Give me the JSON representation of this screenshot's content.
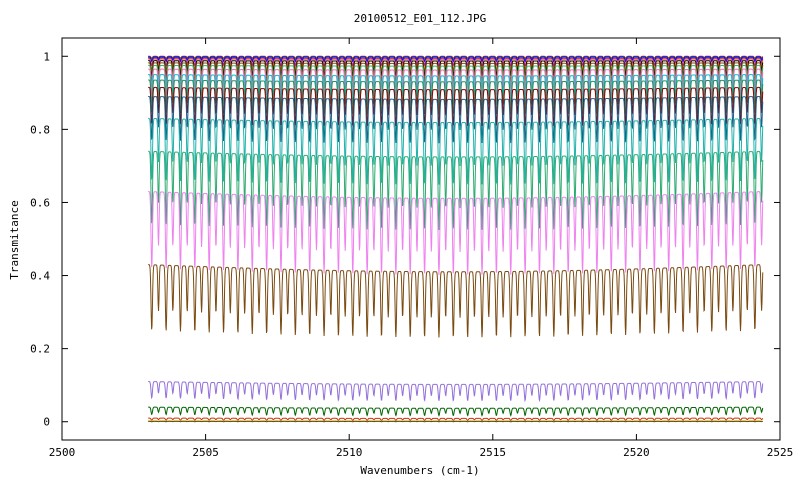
{
  "chart_data": {
    "type": "line",
    "title": "20100512_E01_112.JPG",
    "xlabel": "Wavenumbers (cm-1)",
    "ylabel": "Transmitance",
    "xlim": [
      2500,
      2525
    ],
    "ylim": [
      -0.05,
      1.05
    ],
    "xticks": [
      2500,
      2505,
      2510,
      2515,
      2520,
      2525
    ],
    "yticks": [
      0,
      0.2,
      0.4,
      0.6,
      0.8,
      1
    ],
    "ytick_labels": [
      "0",
      "0.2",
      "0.4",
      "0.6",
      "0.8",
      "1"
    ],
    "grid": false,
    "legend": "none",
    "data_x_range": [
      2503,
      2524.4
    ],
    "line_period_cm": 0.5,
    "series": [
      {
        "color": "#ff0000",
        "baseline": 1.0,
        "dip_depth": 0.005
      },
      {
        "color": "#00aa00",
        "baseline": 0.999,
        "dip_depth": 0.008
      },
      {
        "color": "#0000ff",
        "baseline": 0.998,
        "dip_depth": 0.012
      },
      {
        "color": "#8000ff",
        "baseline": 0.995,
        "dip_depth": 0.02
      },
      {
        "color": "#ff8000",
        "baseline": 0.992,
        "dip_depth": 0.03
      },
      {
        "color": "#000000",
        "baseline": 0.988,
        "dip_depth": 0.04
      },
      {
        "color": "#8b4513",
        "baseline": 0.982,
        "dip_depth": 0.05
      },
      {
        "color": "#3cb371",
        "baseline": 0.975,
        "dip_depth": 0.06
      },
      {
        "color": "#ff69b4",
        "baseline": 0.965,
        "dip_depth": 0.07
      },
      {
        "color": "#00bcd4",
        "baseline": 0.95,
        "dip_depth": 0.08
      },
      {
        "color": "#2e8b57",
        "baseline": 0.935,
        "dip_depth": 0.09
      },
      {
        "color": "#8b0000",
        "baseline": 0.915,
        "dip_depth": 0.1
      },
      {
        "color": "#1f5f8b",
        "baseline": 0.89,
        "dip_depth": 0.12
      },
      {
        "color": "#20b2aa",
        "baseline": 0.83,
        "dip_depth": 0.17
      },
      {
        "color": "#2eaa70",
        "baseline": 0.74,
        "dip_depth": 0.2
      },
      {
        "color": "#ee82ee",
        "baseline": 0.63,
        "dip_depth": 0.21
      },
      {
        "color": "#7a4a10",
        "baseline": 0.43,
        "dip_depth": 0.18
      },
      {
        "color": "#9370db",
        "baseline": 0.11,
        "dip_depth": 0.045
      },
      {
        "color": "#006400",
        "baseline": 0.04,
        "dip_depth": 0.02
      },
      {
        "color": "#cc3300",
        "baseline": 0.01,
        "dip_depth": 0.006
      },
      {
        "color": "#ffd700",
        "baseline": 0.003,
        "dip_depth": 0.002
      },
      {
        "color": "#444444",
        "baseline": 0.001,
        "dip_depth": 0.001
      }
    ]
  }
}
